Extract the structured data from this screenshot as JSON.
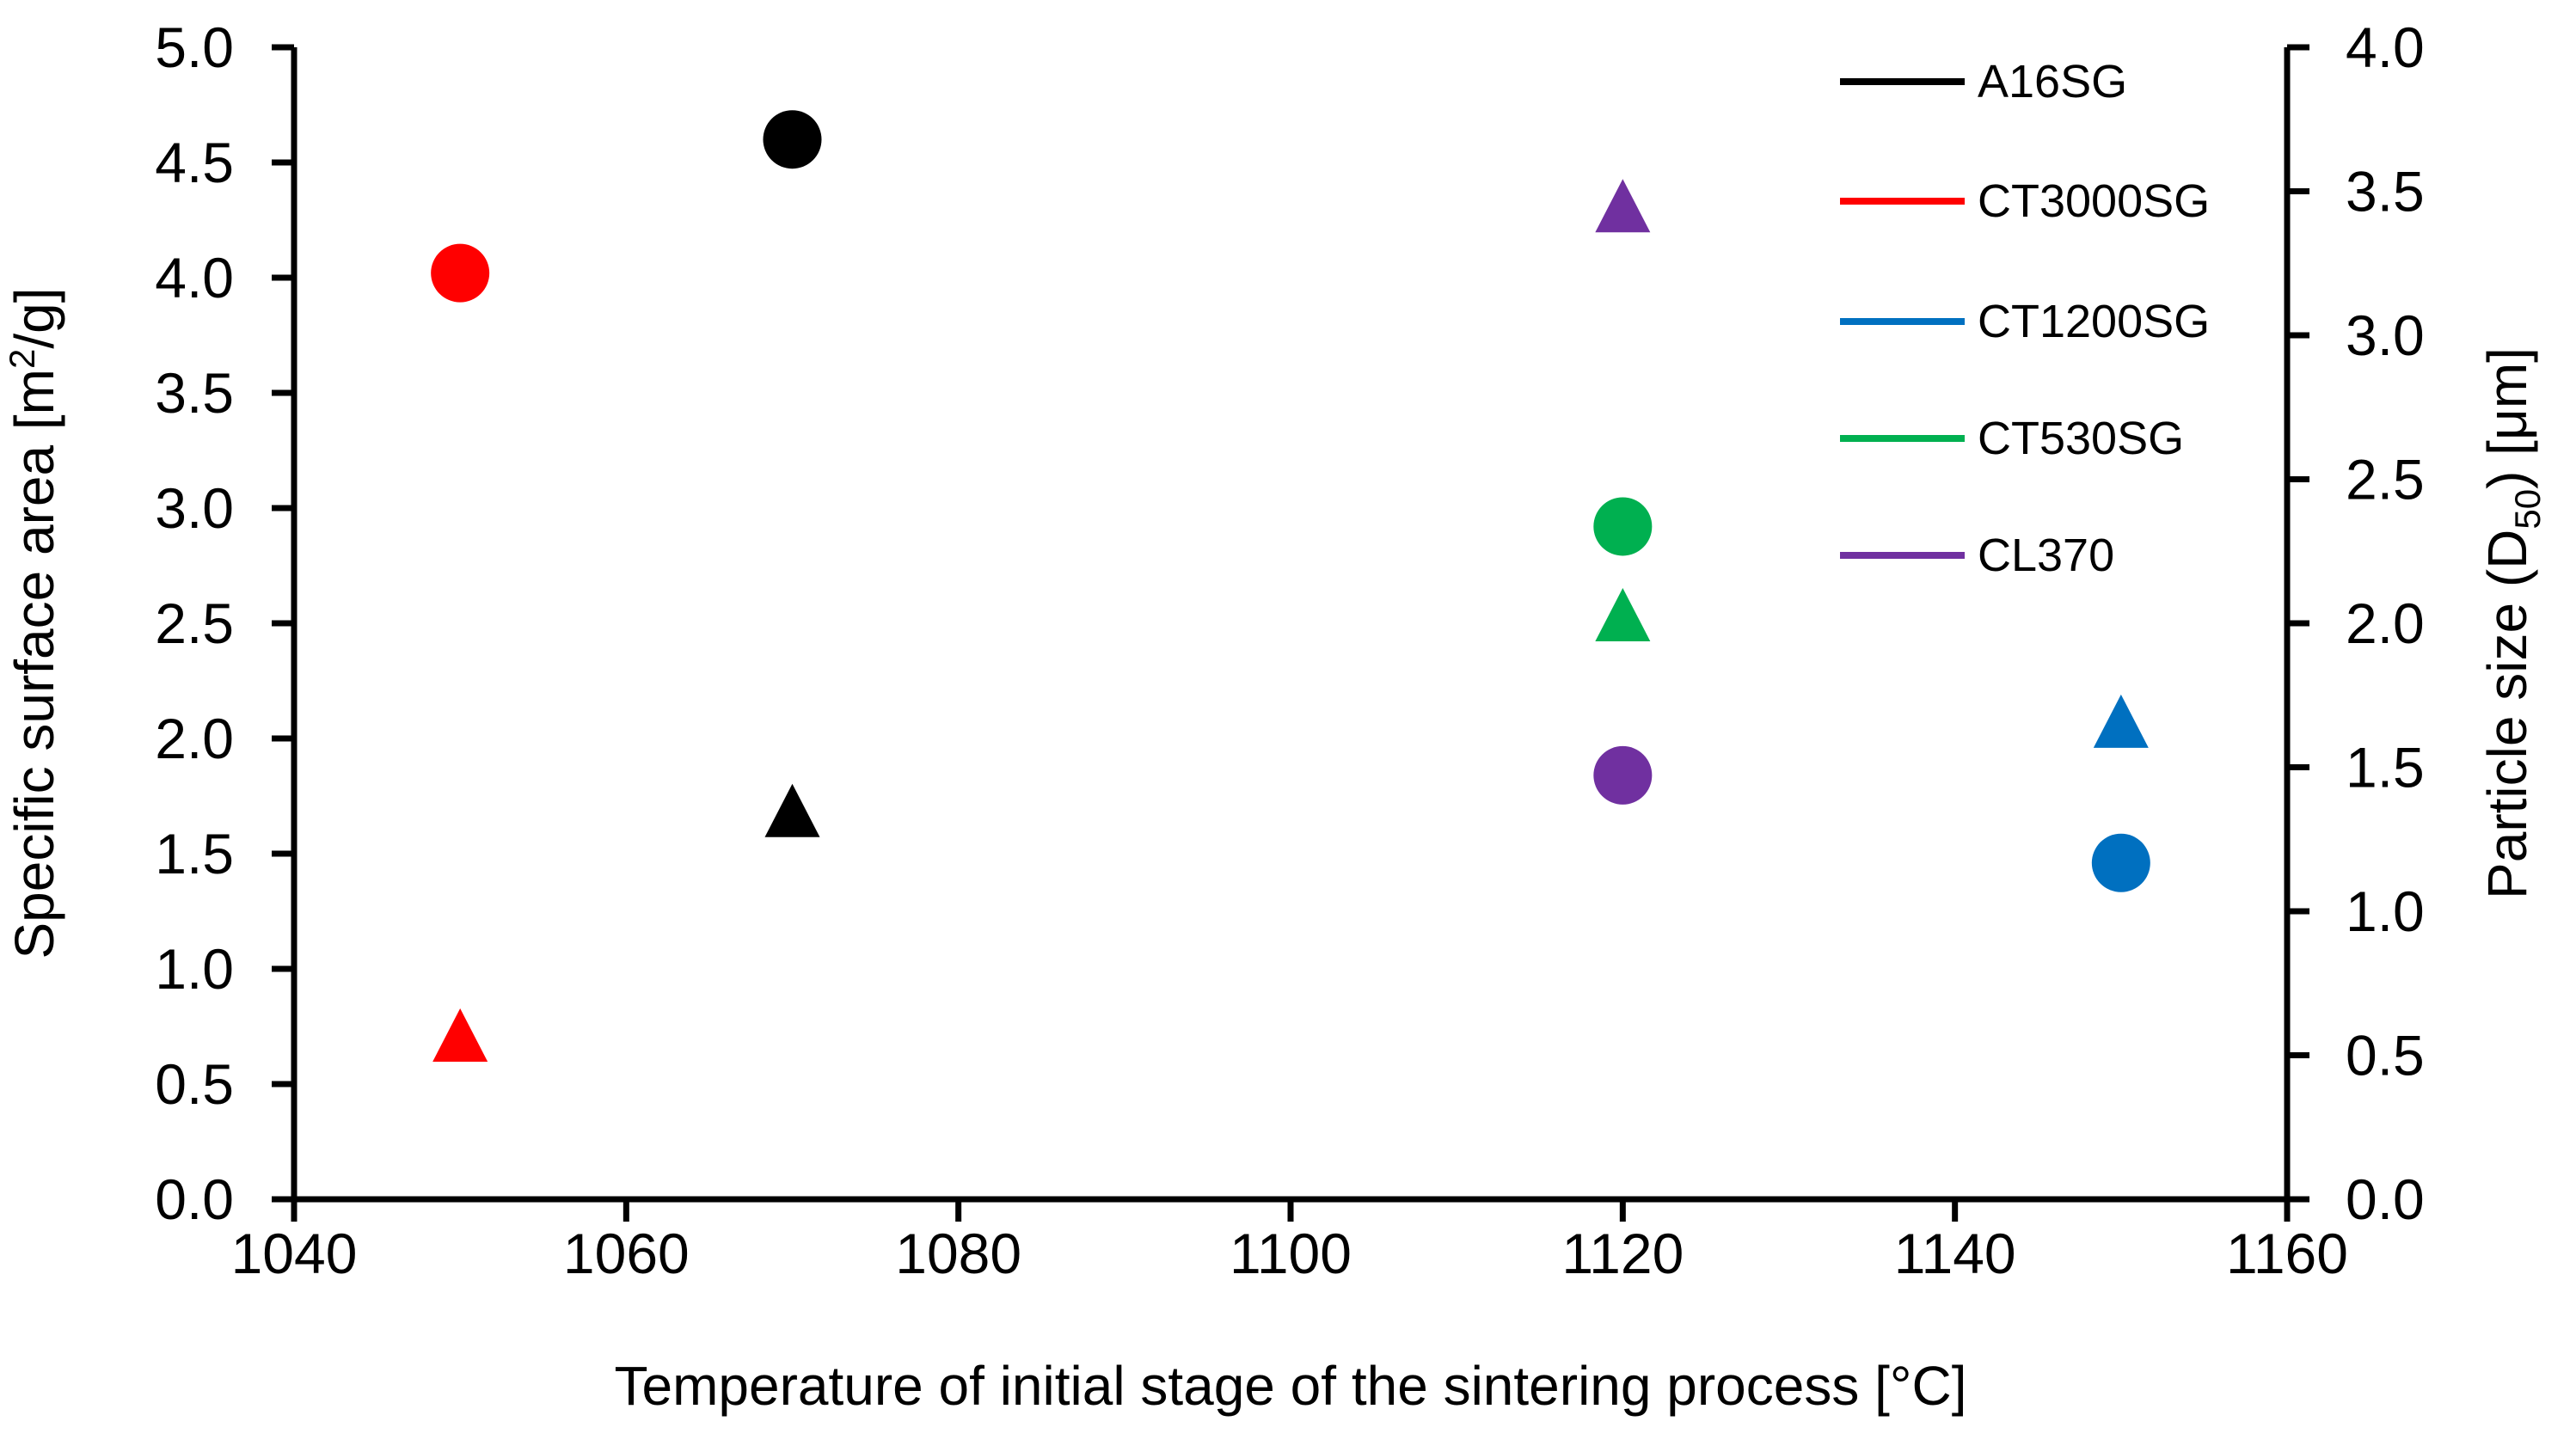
{
  "figure": {
    "background": "#FFFFFF"
  },
  "chart_data": {
    "type": "scatter",
    "title": "",
    "xlabel": "Temperature of initial stage of the sintering process [°C]",
    "ylabel_left": "Specific surface area [m²/g]",
    "ylabel_right": "Particle size (D₅₀) [μm]",
    "ylabel_left_parts": [
      {
        "t": "Specific surface area [m",
        "s": "n"
      },
      {
        "t": "2",
        "s": "sup"
      },
      {
        "t": "/g]",
        "s": "n"
      }
    ],
    "ylabel_right_parts": [
      {
        "t": "Particle size (D",
        "s": "n"
      },
      {
        "t": "50",
        "s": "sub"
      },
      {
        "t": ") [μm]",
        "s": "n"
      }
    ],
    "x_axis": {
      "min": 1040,
      "max": 1160,
      "ticks": [
        1040,
        1060,
        1080,
        1100,
        1120,
        1140,
        1160
      ]
    },
    "y_axis_left": {
      "min": 0.0,
      "max": 5.0,
      "ticks": [
        "0.0",
        "0.5",
        "1.0",
        "1.5",
        "2.0",
        "2.5",
        "3.0",
        "3.5",
        "4.0",
        "4.5",
        "5.0"
      ]
    },
    "y_axis_right": {
      "min": 0.0,
      "max": 4.0,
      "ticks": [
        "0.0",
        "0.5",
        "1.0",
        "1.5",
        "2.0",
        "2.5",
        "3.0",
        "3.5",
        "4.0"
      ]
    },
    "legend_position": "top-right",
    "marker_semantics": {
      "circle": "Specific surface area, left axis [m2/g]",
      "triangle": "Particle size D50, right axis [um]"
    },
    "series": [
      {
        "name": "A16SG",
        "color": "#000000",
        "specific_surface_area": {
          "x": 1070,
          "y": 4.6
        },
        "particle_size_d50": {
          "x": 1070,
          "y": 1.35
        }
      },
      {
        "name": "CT3000SG",
        "color": "#FF0000",
        "specific_surface_area": {
          "x": 1050,
          "y": 4.02
        },
        "particle_size_d50": {
          "x": 1050,
          "y": 0.57
        }
      },
      {
        "name": "CT1200SG",
        "color": "#0070C0",
        "specific_surface_area": {
          "x": 1150,
          "y": 1.46
        },
        "particle_size_d50": {
          "x": 1150,
          "y": 1.66
        }
      },
      {
        "name": "CT530SG",
        "color": "#00B050",
        "specific_surface_area": {
          "x": 1120,
          "y": 2.92
        },
        "particle_size_d50": {
          "x": 1120,
          "y": 2.03
        }
      },
      {
        "name": "CL370",
        "color": "#7030A0",
        "specific_surface_area": {
          "x": 1120,
          "y": 1.84
        },
        "particle_size_d50": {
          "x": 1120,
          "y": 3.45
        }
      }
    ]
  }
}
